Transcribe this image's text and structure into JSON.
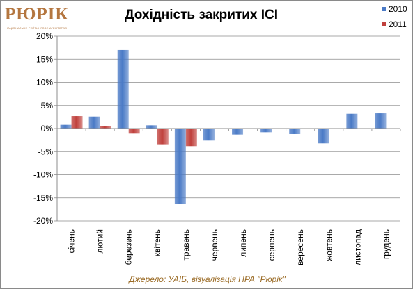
{
  "logo": {
    "word": "РЮРІК",
    "tagline": "НАЦІОНАЛЬНЕ РЕЙТИНГОВЕ АГЕНТСТВО"
  },
  "source_note": "Джерело: УАІБ, візуалізація НРА \"Рюрік\"",
  "chart_data": {
    "type": "bar",
    "title": "Дохідність закритих ІСІ",
    "xlabel": "",
    "ylabel": "",
    "categories": [
      "січень",
      "лютий",
      "березень",
      "квітень",
      "травень",
      "червень",
      "липень",
      "серпень",
      "вересень",
      "жовтень",
      "листопад",
      "грудень"
    ],
    "series": [
      {
        "name": "2010",
        "color": "#4a7ac6",
        "values": [
          0.8,
          2.6,
          17.0,
          0.7,
          -16.3,
          -2.6,
          -1.3,
          -0.8,
          -1.2,
          -3.2,
          3.2,
          3.3
        ]
      },
      {
        "name": "2011",
        "color": "#c0403c",
        "values": [
          2.7,
          0.6,
          -1.1,
          -3.4,
          -3.8,
          null,
          null,
          null,
          null,
          null,
          null,
          null
        ]
      }
    ],
    "ylim": [
      -20,
      20
    ],
    "yticks": [
      20,
      15,
      10,
      5,
      0,
      -5,
      -10,
      -15,
      -20
    ],
    "ytick_labels": [
      "20%",
      "15%",
      "10%",
      "5%",
      "0%",
      "-5%",
      "-10%",
      "-15%",
      "-20%"
    ],
    "grid": true,
    "legend": "top-right"
  }
}
